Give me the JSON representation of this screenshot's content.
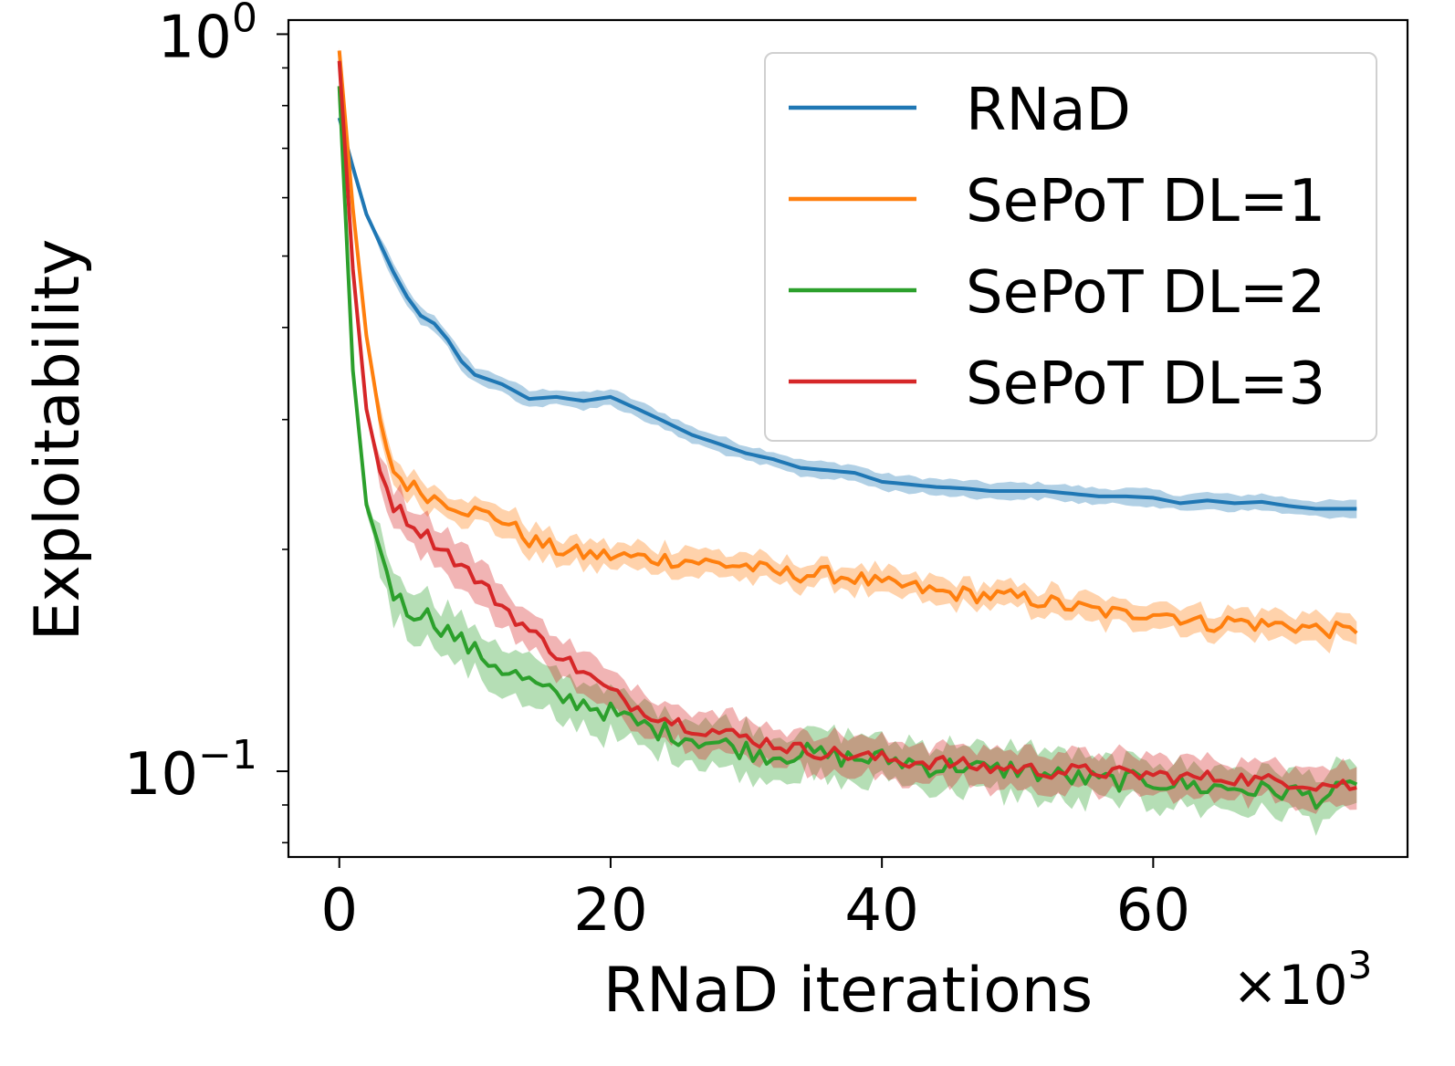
{
  "chart_data": {
    "type": "line",
    "title": "",
    "xlabel": "RNaD iterations",
    "x_scale_label": "×10",
    "x_scale_exp": "3",
    "ylabel": "Exploitability",
    "yscale": "log",
    "xlim": [
      -3.75,
      78.75
    ],
    "ylim": [
      0.0765,
      1.045
    ],
    "x_ticks": [
      {
        "value": 0,
        "label": "0"
      },
      {
        "value": 20,
        "label": "20"
      },
      {
        "value": 40,
        "label": "40"
      },
      {
        "value": 60,
        "label": "60"
      }
    ],
    "y_ticks": [
      {
        "value": 1.0,
        "base": "10",
        "exp": "0"
      },
      {
        "value": 0.1,
        "base": "10",
        "exp": "−1"
      }
    ],
    "y_minor_ticks": [
      0.08,
      0.09,
      0.2,
      0.3,
      0.4,
      0.5,
      0.6,
      0.7,
      0.8,
      0.9
    ],
    "legend": {
      "placement": "top-right"
    },
    "x": [
      0,
      1,
      2,
      3,
      4,
      5,
      6,
      7,
      8,
      9,
      10,
      12,
      14,
      16,
      18,
      20,
      22,
      24,
      26,
      28,
      30,
      32,
      34,
      36,
      38,
      40,
      42,
      44,
      46,
      48,
      50,
      52,
      54,
      56,
      58,
      60,
      62,
      64,
      66,
      68,
      70,
      72,
      74,
      75
    ],
    "series": [
      {
        "name": "RNaD",
        "color": "#1f77b4",
        "values": [
          0.77,
          0.66,
          0.57,
          0.52,
          0.475,
          0.44,
          0.415,
          0.405,
          0.385,
          0.36,
          0.345,
          0.335,
          0.32,
          0.322,
          0.318,
          0.322,
          0.31,
          0.298,
          0.286,
          0.278,
          0.27,
          0.265,
          0.258,
          0.256,
          0.254,
          0.247,
          0.245,
          0.243,
          0.242,
          0.24,
          0.24,
          0.24,
          0.238,
          0.236,
          0.236,
          0.235,
          0.231,
          0.233,
          0.231,
          0.232,
          0.229,
          0.227,
          0.227,
          0.227
        ],
        "band": 0.025
      },
      {
        "name": "SePoT DL=1",
        "color": "#ff7f0e",
        "values": [
          0.95,
          0.58,
          0.39,
          0.3,
          0.255,
          0.245,
          0.24,
          0.235,
          0.232,
          0.228,
          0.225,
          0.22,
          0.206,
          0.2,
          0.197,
          0.196,
          0.195,
          0.194,
          0.193,
          0.191,
          0.19,
          0.186,
          0.185,
          0.185,
          0.183,
          0.179,
          0.178,
          0.175,
          0.174,
          0.173,
          0.172,
          0.17,
          0.167,
          0.165,
          0.163,
          0.165,
          0.162,
          0.158,
          0.16,
          0.158,
          0.158,
          0.156,
          0.155,
          0.154
        ],
        "band": 0.04,
        "jitter": 0.022
      },
      {
        "name": "SePoT DL=2",
        "color": "#2ca02c",
        "values": [
          0.85,
          0.35,
          0.23,
          0.2,
          0.175,
          0.165,
          0.165,
          0.16,
          0.155,
          0.15,
          0.145,
          0.138,
          0.132,
          0.126,
          0.124,
          0.12,
          0.116,
          0.113,
          0.111,
          0.109,
          0.107,
          0.105,
          0.106,
          0.105,
          0.104,
          0.104,
          0.103,
          0.101,
          0.102,
          0.1,
          0.101,
          0.099,
          0.098,
          0.097,
          0.097,
          0.097,
          0.096,
          0.095,
          0.095,
          0.094,
          0.094,
          0.092,
          0.094,
          0.096
        ],
        "band": 0.07,
        "jitter": 0.028
      },
      {
        "name": "SePoT DL=3",
        "color": "#d62728",
        "values": [
          0.92,
          0.48,
          0.31,
          0.255,
          0.23,
          0.22,
          0.212,
          0.205,
          0.198,
          0.19,
          0.183,
          0.168,
          0.155,
          0.145,
          0.136,
          0.128,
          0.122,
          0.118,
          0.115,
          0.113,
          0.111,
          0.109,
          0.107,
          0.106,
          0.105,
          0.104,
          0.103,
          0.103,
          0.102,
          0.101,
          0.101,
          0.1,
          0.1,
          0.1,
          0.099,
          0.099,
          0.098,
          0.098,
          0.098,
          0.097,
          0.097,
          0.096,
          0.096,
          0.095
        ],
        "band": 0.06,
        "jitter": 0.02
      }
    ]
  }
}
